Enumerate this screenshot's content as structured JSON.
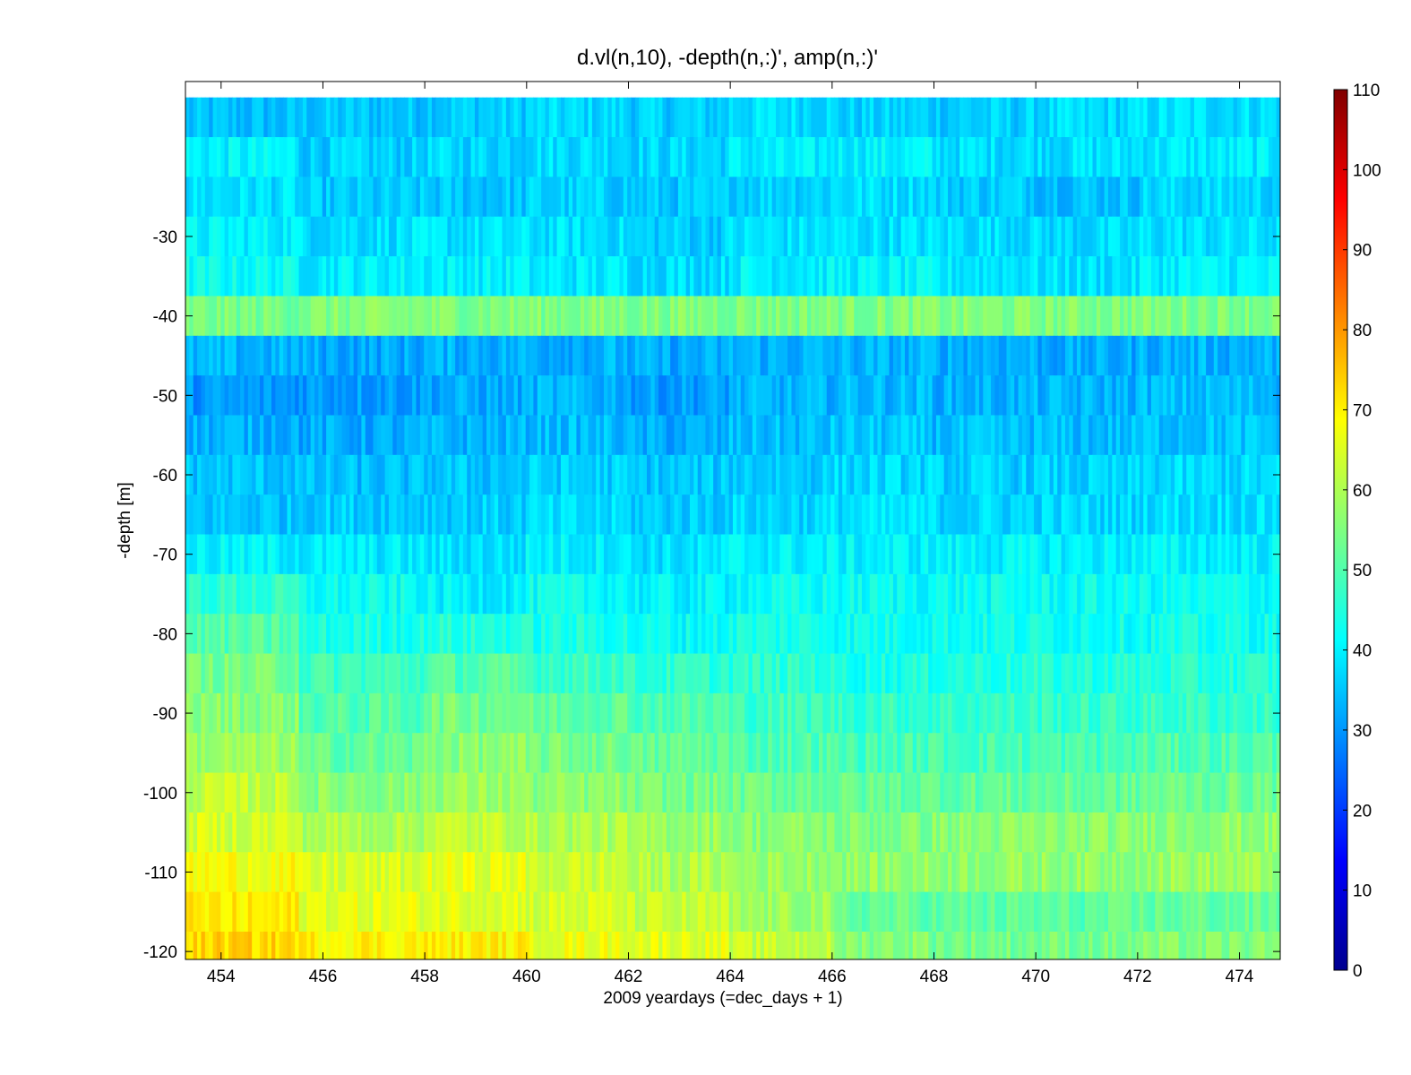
{
  "chart_data": {
    "type": "heatmap",
    "title": "d.vl(n,10), -depth(n,:)',       amp(n,:)'",
    "xlabel": "2009 yeardays (=dec_days + 1)",
    "ylabel": "-depth [m]",
    "xlim": [
      453.3,
      474.8
    ],
    "ylim": [
      -121.0,
      -10.5
    ],
    "x_ticks": [
      454,
      456,
      458,
      460,
      462,
      464,
      466,
      468,
      470,
      472,
      474
    ],
    "y_ticks": [
      -30,
      -40,
      -50,
      -60,
      -70,
      -80,
      -90,
      -100,
      -110,
      -120
    ],
    "colorbar": {
      "range": [
        0,
        110
      ],
      "ticks": [
        0,
        10,
        20,
        30,
        40,
        50,
        60,
        70,
        80,
        90,
        100,
        110
      ],
      "colormap": "jet"
    },
    "depth_bins_m": [
      -15,
      -20,
      -25,
      -30,
      -35,
      -40,
      -45,
      -50,
      -55,
      -60,
      -65,
      -70,
      -75,
      -80,
      -85,
      -90,
      -95,
      -100,
      -105,
      -110,
      -115,
      -120
    ],
    "day_segments": [
      453.3,
      455.5,
      458.0,
      460.0,
      462.0,
      464.0,
      466.0,
      468.0,
      470.0,
      472.0,
      474.8
    ],
    "amplitude_grid": [
      [
        34,
        35,
        36,
        37,
        36,
        38,
        36,
        36,
        37,
        38
      ],
      [
        40,
        36,
        37,
        38,
        37,
        39,
        40,
        38,
        38,
        39
      ],
      [
        38,
        35,
        35,
        36,
        35,
        37,
        38,
        36,
        35,
        37
      ],
      [
        40,
        38,
        38,
        38,
        36,
        38,
        38,
        38,
        37,
        38
      ],
      [
        42,
        40,
        40,
        39,
        38,
        40,
        40,
        39,
        38,
        40
      ],
      [
        54,
        55,
        55,
        55,
        55,
        55,
        55,
        55,
        55,
        55
      ],
      [
        33,
        32,
        33,
        33,
        32,
        33,
        33,
        33,
        32,
        33
      ],
      [
        30,
        31,
        32,
        33,
        31,
        33,
        34,
        33,
        33,
        34
      ],
      [
        33,
        32,
        33,
        34,
        32,
        34,
        35,
        34,
        34,
        35
      ],
      [
        35,
        34,
        35,
        36,
        35,
        36,
        37,
        36,
        36,
        37
      ],
      [
        35,
        36,
        36,
        37,
        36,
        37,
        38,
        37,
        37,
        38
      ],
      [
        40,
        39,
        38,
        40,
        38,
        40,
        40,
        40,
        40,
        40
      ],
      [
        46,
        42,
        40,
        42,
        40,
        42,
        42,
        42,
        42,
        42
      ],
      [
        50,
        44,
        45,
        44,
        42,
        44,
        43,
        43,
        43,
        43
      ],
      [
        54,
        48,
        50,
        48,
        46,
        46,
        44,
        45,
        45,
        45
      ],
      [
        56,
        50,
        54,
        52,
        50,
        48,
        47,
        47,
        47,
        47
      ],
      [
        58,
        52,
        56,
        54,
        52,
        50,
        49,
        49,
        49,
        50
      ],
      [
        62,
        56,
        58,
        56,
        54,
        53,
        52,
        52,
        52,
        53
      ],
      [
        64,
        60,
        62,
        60,
        58,
        56,
        55,
        56,
        56,
        57
      ],
      [
        68,
        64,
        66,
        63,
        60,
        58,
        57,
        57,
        57,
        58
      ],
      [
        70,
        66,
        66,
        64,
        62,
        58,
        52,
        51,
        51,
        52
      ],
      [
        73,
        70,
        70,
        67,
        66,
        62,
        56,
        54,
        54,
        55
      ]
    ]
  }
}
